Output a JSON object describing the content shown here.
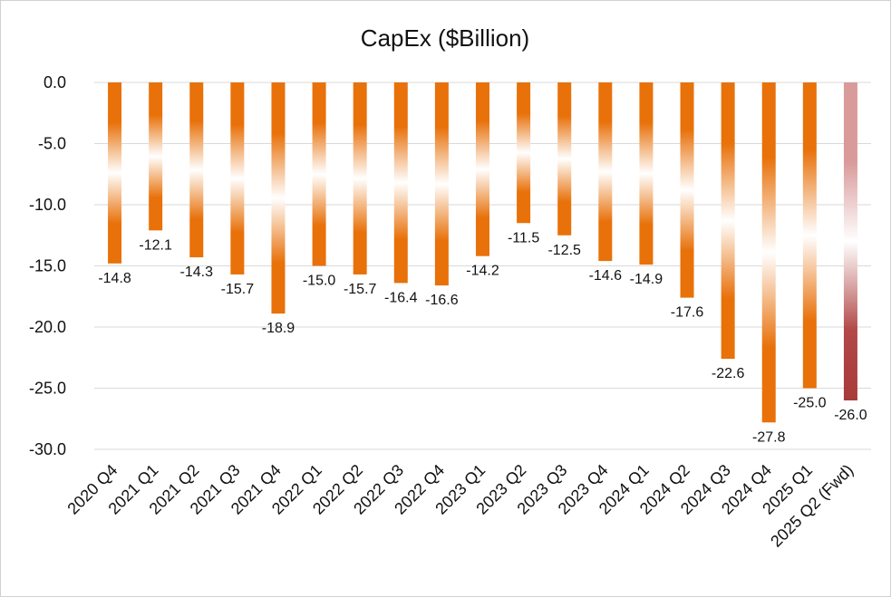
{
  "chart_data": {
    "type": "bar",
    "title": "CapEx ($Billion)",
    "categories": [
      "2020 Q4",
      "2021 Q1",
      "2021 Q2",
      "2021 Q3",
      "2021 Q4",
      "2022 Q1",
      "2022 Q2",
      "2022 Q3",
      "2022 Q4",
      "2023 Q1",
      "2023 Q2",
      "2023 Q3",
      "2023 Q4",
      "2024 Q1",
      "2024 Q2",
      "2024 Q3",
      "2024 Q4",
      "2025 Q1",
      "2025 Q2 (Fwd)"
    ],
    "values": [
      -14.8,
      -12.1,
      -14.3,
      -15.7,
      -18.9,
      -15.0,
      -15.7,
      -16.4,
      -16.6,
      -14.2,
      -11.5,
      -12.5,
      -14.6,
      -14.9,
      -17.6,
      -22.6,
      -27.8,
      -25.0,
      -26.0
    ],
    "value_labels": [
      "-14.8",
      "-12.1",
      "-14.3",
      "-15.7",
      "-18.9",
      "-15.0",
      "-15.7",
      "-16.4",
      "-16.6",
      "-14.2",
      "-11.5",
      "-12.5",
      "-14.6",
      "-14.9",
      "-17.6",
      "-22.6",
      "-27.8",
      "-25.0",
      "-26.0"
    ],
    "y_ticks": [
      0,
      -5,
      -10,
      -15,
      -20,
      -25,
      -30
    ],
    "y_tick_labels": [
      "0.0",
      "-5.0",
      "-10.0",
      "-15.0",
      "-20.0",
      "-25.0",
      "-30.0"
    ],
    "ylim": [
      -30,
      0
    ],
    "xlabel": "",
    "ylabel": "",
    "grid": true,
    "legend": "none",
    "colors": {
      "actual": "#e8710a",
      "forward": "#a83a3a",
      "forward_light": "#d99a9a",
      "grid": "#d9d9d9"
    }
  }
}
